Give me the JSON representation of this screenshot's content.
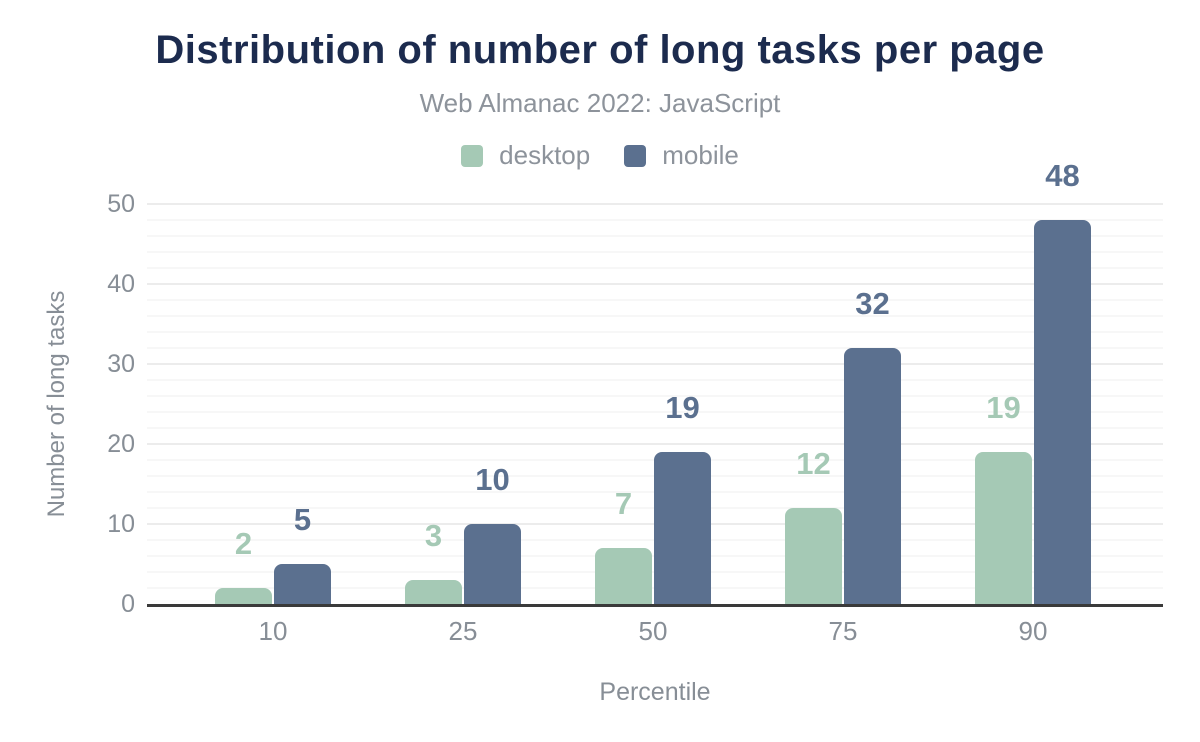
{
  "figure": {
    "title": "Distribution of number of long tasks per page",
    "subtitle": "Web Almanac 2022: JavaScript"
  },
  "colors": {
    "background": "#ffffff",
    "title": "#1c2b4e",
    "muted_text": "#878e96",
    "subtitle_text": "#8d939b",
    "axis_line": "#3a3a3a",
    "grid_major": "#ececec",
    "grid_minor": "#f7f7f7",
    "desktop": "#a5c9b5",
    "mobile": "#5b708f"
  },
  "chart_data": {
    "type": "bar",
    "title": "Distribution of number of long tasks per page",
    "subtitle": "Web Almanac 2022: JavaScript",
    "categories": [
      "10",
      "25",
      "50",
      "75",
      "90"
    ],
    "series": [
      {
        "name": "desktop",
        "color": "#a5c9b5",
        "values": [
          2,
          3,
          7,
          12,
          19
        ]
      },
      {
        "name": "mobile",
        "color": "#5b708f",
        "values": [
          5,
          10,
          19,
          32,
          48
        ]
      }
    ],
    "xlabel": "Percentile",
    "ylabel": "Number of long tasks",
    "ylim": [
      0,
      50
    ],
    "yticks": [
      0,
      10,
      20,
      30,
      40,
      50
    ],
    "minor_grid_step": 2,
    "grid": "horizontal",
    "legend_position": "top",
    "data_labels": true
  }
}
